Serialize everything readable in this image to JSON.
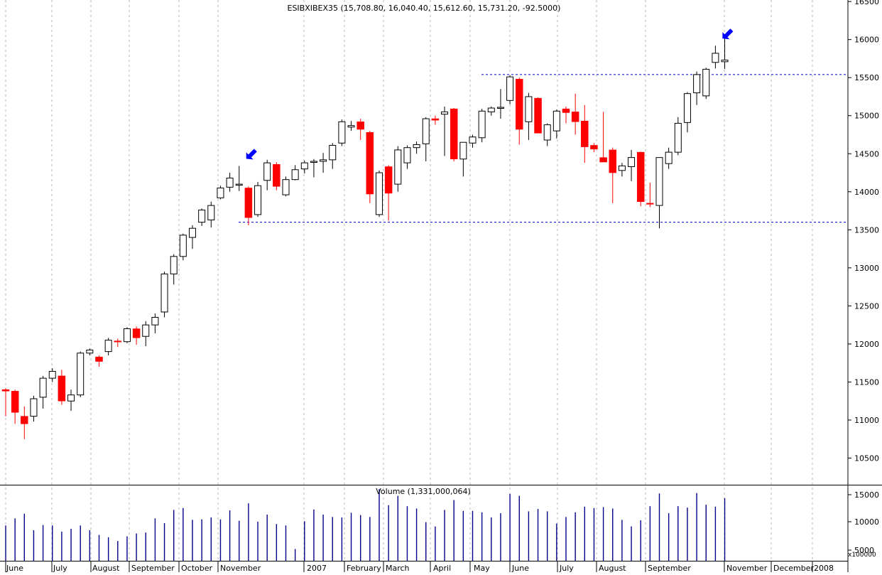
{
  "chart_data": [
    {
      "type": "candlestick",
      "title": "ESIBXIBEX35 (15,708.80, 16,040.40, 15,612.60, 15,731.20, -92.5000)",
      "ylim": [
        10150,
        16520
      ],
      "y_ticks": [
        10500,
        11000,
        11500,
        12000,
        12500,
        13000,
        13500,
        14000,
        14500,
        15000,
        15500,
        16000,
        16500
      ],
      "y_tick_labels": [
        "10500",
        "11000",
        "11500",
        "12000",
        "12500",
        "13000",
        "13500",
        "14000",
        "14500",
        "15000",
        "15500",
        "16000",
        "16500"
      ],
      "grid": "vertical dotted",
      "candle_colors": {
        "up": "#ffffff",
        "down": "#ff0000",
        "outline": "#000000"
      },
      "reference_lines": [
        {
          "value": 15540,
          "color": "#0000cc",
          "style": "dashed"
        },
        {
          "value": 13600,
          "color": "#0000cc",
          "style": "dashed"
        }
      ],
      "markers": [
        {
          "type": "arrow",
          "color": "#0000ff",
          "week": 25
        },
        {
          "type": "arrow",
          "color": "#0000ff",
          "week": 76
        }
      ],
      "ohlc": [
        [
          11400,
          11420,
          11050,
          11380
        ],
        [
          11380,
          11400,
          10950,
          11100
        ],
        [
          11050,
          11180,
          10750,
          10950
        ],
        [
          11050,
          11320,
          10980,
          11280
        ],
        [
          11300,
          11580,
          11150,
          11550
        ],
        [
          11550,
          11680,
          11500,
          11640
        ],
        [
          11580,
          11660,
          11200,
          11250
        ],
        [
          11250,
          11400,
          11120,
          11330
        ],
        [
          11330,
          11900,
          11300,
          11880
        ],
        [
          11880,
          11940,
          11850,
          11920
        ],
        [
          11830,
          11850,
          11700,
          11770
        ],
        [
          11900,
          12080,
          11850,
          12050
        ],
        [
          12040,
          12070,
          11960,
          12030
        ],
        [
          12030,
          12220,
          12010,
          12200
        ],
        [
          12200,
          12230,
          11990,
          12080
        ],
        [
          12100,
          12300,
          11970,
          12250
        ],
        [
          12250,
          12400,
          12140,
          12350
        ],
        [
          12420,
          12950,
          12350,
          12920
        ],
        [
          12920,
          13180,
          12780,
          13150
        ],
        [
          13150,
          13450,
          13100,
          13430
        ],
        [
          13400,
          13560,
          13250,
          13520
        ],
        [
          13600,
          13780,
          13550,
          13760
        ],
        [
          13630,
          13870,
          13530,
          13820
        ],
        [
          13920,
          14080,
          13900,
          14050
        ],
        [
          14060,
          14250,
          14000,
          14180
        ],
        [
          14100,
          14340,
          14010,
          14100
        ],
        [
          14050,
          14070,
          13560,
          13660
        ],
        [
          13700,
          14130,
          13670,
          14080
        ],
        [
          14150,
          14420,
          14020,
          14380
        ],
        [
          14360,
          14390,
          14020,
          14070
        ],
        [
          13960,
          14200,
          13940,
          14160
        ],
        [
          14160,
          14350,
          14150,
          14290
        ],
        [
          14300,
          14410,
          14240,
          14380
        ],
        [
          14400,
          14430,
          14190,
          14400
        ],
        [
          14400,
          14510,
          14250,
          14420
        ],
        [
          14420,
          14640,
          14300,
          14610
        ],
        [
          14640,
          14950,
          14600,
          14920
        ],
        [
          14850,
          14930,
          14800,
          14870
        ],
        [
          14920,
          14960,
          14680,
          14820
        ],
        [
          14780,
          14800,
          13850,
          13970
        ],
        [
          13700,
          14280,
          13670,
          14250
        ],
        [
          14330,
          14350,
          13620,
          13980
        ],
        [
          14100,
          14600,
          14000,
          14550
        ],
        [
          14380,
          14610,
          14300,
          14580
        ],
        [
          14580,
          14660,
          14500,
          14620
        ],
        [
          14630,
          14980,
          14400,
          14960
        ],
        [
          14960,
          15000,
          14880,
          14940
        ],
        [
          15020,
          15120,
          14470,
          15050
        ],
        [
          15090,
          15100,
          14400,
          14430
        ],
        [
          14430,
          14620,
          14200,
          14650
        ],
        [
          14640,
          14750,
          14580,
          14720
        ],
        [
          14710,
          15090,
          14650,
          15060
        ],
        [
          15050,
          15120,
          15000,
          15100
        ],
        [
          15100,
          15350,
          14960,
          15110
        ],
        [
          15200,
          15530,
          15150,
          15510
        ],
        [
          15480,
          15500,
          14620,
          14820
        ],
        [
          14920,
          15300,
          14680,
          15250
        ],
        [
          15230,
          15240,
          14780,
          14770
        ],
        [
          14680,
          14900,
          14600,
          14880
        ],
        [
          14800,
          15080,
          14700,
          15060
        ],
        [
          15090,
          15120,
          14900,
          15040
        ],
        [
          15050,
          15290,
          14750,
          14920
        ],
        [
          14930,
          15140,
          14380,
          14590
        ],
        [
          14610,
          14640,
          14520,
          14560
        ],
        [
          14450,
          15050,
          14400,
          14390
        ],
        [
          14550,
          14580,
          13850,
          14250
        ],
        [
          14280,
          14380,
          14200,
          14340
        ],
        [
          14330,
          14550,
          14140,
          14450
        ],
        [
          14520,
          14530,
          13810,
          13870
        ],
        [
          13850,
          14120,
          13800,
          13840
        ],
        [
          13820,
          14450,
          13520,
          14450
        ],
        [
          14370,
          14580,
          14300,
          14520
        ],
        [
          14520,
          14980,
          14480,
          14900
        ],
        [
          14910,
          15310,
          14780,
          15290
        ],
        [
          15300,
          15580,
          15140,
          15540
        ],
        [
          15260,
          15630,
          15220,
          15610
        ],
        [
          15700,
          15920,
          15620,
          15820
        ],
        [
          15709,
          16040,
          15613,
          15731
        ]
      ]
    },
    {
      "type": "bar",
      "title": "Volume (1,331,000,064)",
      "ylim": [
        0,
        16000
      ],
      "y_ticks": [
        5000,
        10000,
        15000
      ],
      "y_tick_labels": [
        "5000",
        "10000",
        "15000"
      ],
      "unit": "x100000",
      "bar_color": "#00008b",
      "values": [
        7500,
        9000,
        10000,
        6500,
        7600,
        7500,
        6200,
        6800,
        7500,
        6500,
        5500,
        5000,
        4200,
        5200,
        5800,
        6000,
        9000,
        8000,
        10800,
        11200,
        8700,
        8800,
        9200,
        8800,
        10700,
        8500,
        12200,
        8300,
        9800,
        7800,
        7500,
        2500,
        8400,
        10900,
        9800,
        9300,
        9200,
        10200,
        9700,
        9300,
        15200,
        11800,
        13800,
        11600,
        11100,
        8200,
        7300,
        10800,
        12900,
        10600,
        10600,
        10300,
        9200,
        10100,
        14200,
        13800,
        10500,
        11000,
        10500,
        7900,
        9300,
        10300,
        11500,
        11200,
        11400,
        11100,
        8700,
        7300,
        8600,
        11600,
        14300,
        10100,
        11600,
        11300,
        14400,
        11900,
        11500,
        13300
      ],
      "x_labels": [
        "June",
        "July",
        "August",
        "September",
        "October",
        "November",
        "2007",
        "February",
        "March",
        "April",
        "May",
        "June",
        "July",
        "August",
        "September",
        "November",
        "December",
        "2008"
      ]
    }
  ]
}
